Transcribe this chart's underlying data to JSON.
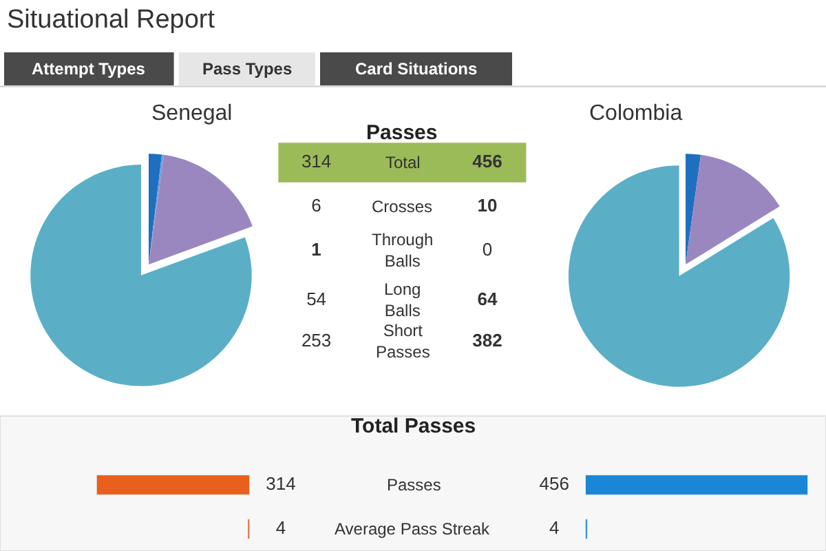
{
  "chart_data": [
    {
      "type": "other",
      "title": "Situational Report",
      "annotations": [
        "Attempt Types",
        "Pass Types",
        "Card Situations"
      ]
    },
    {
      "type": "pie",
      "title": "Senegal",
      "categories": [
        null,
        null,
        null,
        null
      ],
      "values": [
        1.9,
        0.3,
        17.2,
        80.6
      ],
      "colors": [
        "#1f6fc0",
        "#6fa0d8",
        "#9b87c0",
        "#5aafc7"
      ]
    },
    {
      "type": "other",
      "title": "Passes",
      "data_labels": true,
      "categories": [
        "Total",
        "Crosses",
        "Through Balls",
        "Long Balls",
        "Short Passes"
      ],
      "series": [
        {
          "values": [
            314,
            6,
            1,
            54,
            253
          ]
        },
        {
          "values": [
            456,
            10,
            0,
            64,
            382
          ]
        }
      ]
    },
    {
      "type": "pie",
      "title": "Colombia",
      "categories": [
        null,
        null,
        null,
        null
      ],
      "values": [
        2.2,
        0,
        14.0,
        83.8
      ],
      "colors": [
        "#1f6fc0",
        "#6fa0d8",
        "#9b87c0",
        "#5aafc7"
      ]
    },
    {
      "type": "bar",
      "orientation": "horizontal",
      "title": "Total Passes",
      "categories": [
        "Passes",
        "Average Pass Streak"
      ],
      "data_labels": true,
      "series": [
        {
          "color": "#e8601c",
          "values": [
            314,
            4
          ]
        }
      ]
    },
    {
      "type": "bar",
      "orientation": "horizontal",
      "categories": [
        null,
        null
      ],
      "data_labels": true,
      "series": [
        {
          "color": "#1a86d6",
          "values": [
            456,
            4
          ]
        }
      ]
    }
  ]
}
